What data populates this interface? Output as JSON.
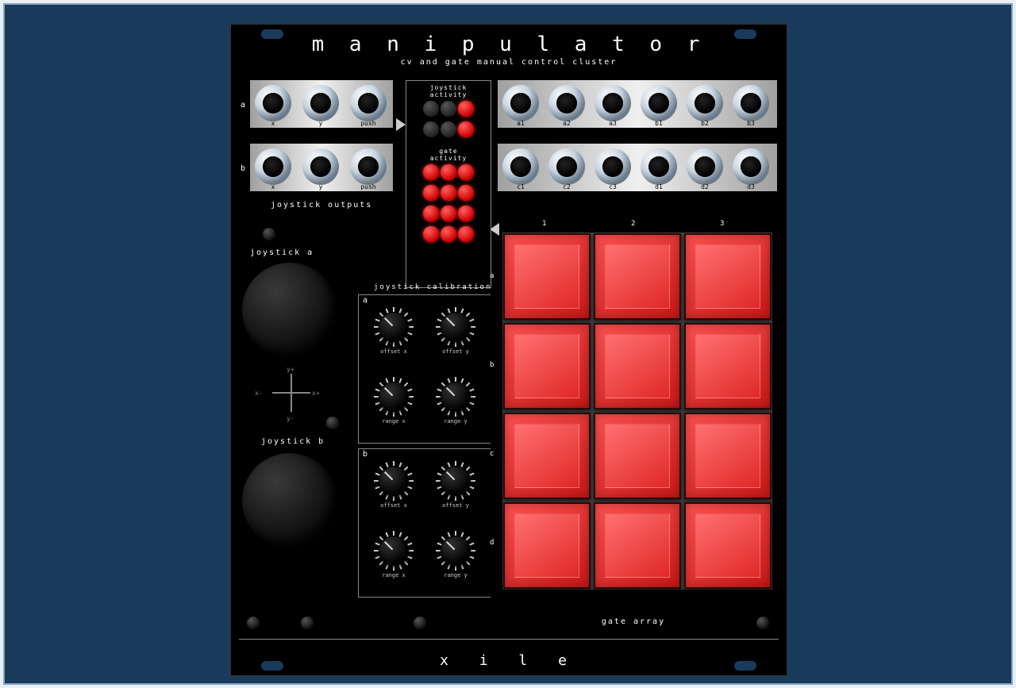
{
  "title": "m a n i p u l a t o r",
  "subtitle": "cv and gate manual control cluster",
  "brand": "x i l e",
  "joystick_outputs_title": "joystick outputs",
  "joystick_rows": {
    "a": {
      "label": "a",
      "jacks": [
        "x",
        "y",
        "push"
      ]
    },
    "b": {
      "label": "b",
      "jacks": [
        "x",
        "y",
        "push"
      ]
    }
  },
  "gate_out_rows": {
    "ab": [
      "a1",
      "a2",
      "a3",
      "b1",
      "b2",
      "b3"
    ],
    "cd": [
      "c1",
      "c2",
      "c3",
      "d1",
      "d2",
      "d3"
    ]
  },
  "activity": {
    "joy_label": "joystick\nactivity",
    "gate_label": "gate\nactivity",
    "joy_leds": [
      false,
      false,
      true,
      false,
      false,
      true
    ],
    "gate_leds": [
      true,
      true,
      true,
      true,
      true,
      true,
      true,
      true,
      true,
      true,
      true,
      true
    ]
  },
  "joysticks": {
    "a_label": "joystick a",
    "b_label": "joystick b",
    "axis": {
      "yp": "y+",
      "yn": "y-",
      "xp": "x+",
      "xn": "x-"
    }
  },
  "calibration": {
    "title": "joystick calibration",
    "a": "a",
    "b": "b",
    "knobs": [
      "offset x",
      "offset y",
      "range x",
      "range y"
    ]
  },
  "gate_array": {
    "title": "gate array",
    "cols": [
      "1",
      "2",
      "3"
    ],
    "rows": [
      "a",
      "b",
      "c",
      "d"
    ]
  },
  "colors": {
    "panel": "#000000",
    "led_on": "#e00000",
    "led_off": "#333333",
    "gate_btn": "#e02020",
    "bg": "#1a3a5c",
    "chrome": "#d0d8e0"
  }
}
